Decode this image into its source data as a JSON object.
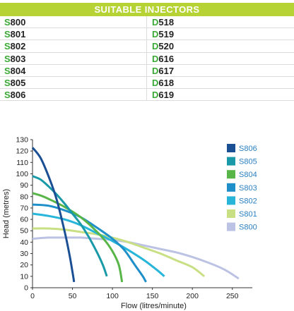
{
  "table": {
    "title": "SUITABLE INJECTORS",
    "rows": [
      [
        {
          "prefix": "S",
          "rest": "800"
        },
        {
          "prefix": "D",
          "rest": "518"
        }
      ],
      [
        {
          "prefix": "S",
          "rest": "801"
        },
        {
          "prefix": "D",
          "rest": "519"
        }
      ],
      [
        {
          "prefix": "S",
          "rest": "802"
        },
        {
          "prefix": "D",
          "rest": "520"
        }
      ],
      [
        {
          "prefix": "S",
          "rest": "803"
        },
        {
          "prefix": "D",
          "rest": "616"
        }
      ],
      [
        {
          "prefix": "S",
          "rest": "804"
        },
        {
          "prefix": "D",
          "rest": "617"
        }
      ],
      [
        {
          "prefix": "S",
          "rest": "805"
        },
        {
          "prefix": "D",
          "rest": "618"
        }
      ],
      [
        {
          "prefix": "S",
          "rest": "806"
        },
        {
          "prefix": "D",
          "rest": "619"
        }
      ]
    ],
    "colors": {
      "header_bg": "#b5d334",
      "prefix": "#3aa935"
    }
  },
  "chart_data": {
    "type": "line",
    "xlabel": "Flow (litres/minute)",
    "ylabel": "Head (metres)",
    "xlim": [
      0,
      275
    ],
    "ylim": [
      0,
      130
    ],
    "xticks": [
      0,
      50,
      100,
      150,
      200,
      250
    ],
    "yticks": [
      0,
      10,
      20,
      30,
      40,
      50,
      60,
      70,
      80,
      90,
      100,
      110,
      120,
      130
    ],
    "grid": false,
    "legend_position": "top-right",
    "series": [
      {
        "name": "S806",
        "color": "#1a4f94",
        "points": [
          [
            0,
            123
          ],
          [
            10,
            114
          ],
          [
            20,
            98
          ],
          [
            30,
            78
          ],
          [
            40,
            50
          ],
          [
            46,
            30
          ],
          [
            50,
            14
          ],
          [
            52,
            5
          ]
        ]
      },
      {
        "name": "S805",
        "color": "#1a9aa8",
        "points": [
          [
            0,
            98
          ],
          [
            10,
            95
          ],
          [
            20,
            89
          ],
          [
            30,
            82
          ],
          [
            40,
            74
          ],
          [
            50,
            65
          ],
          [
            60,
            56
          ],
          [
            70,
            45
          ],
          [
            80,
            32
          ],
          [
            88,
            20
          ],
          [
            93,
            10
          ]
        ]
      },
      {
        "name": "S804",
        "color": "#58b547",
        "points": [
          [
            0,
            83
          ],
          [
            10,
            81
          ],
          [
            20,
            78
          ],
          [
            40,
            71
          ],
          [
            60,
            62
          ],
          [
            75,
            53
          ],
          [
            90,
            42
          ],
          [
            100,
            32
          ],
          [
            108,
            20
          ],
          [
            112,
            5
          ]
        ]
      },
      {
        "name": "S803",
        "color": "#1f8fc9",
        "points": [
          [
            0,
            73
          ],
          [
            20,
            72
          ],
          [
            40,
            68
          ],
          [
            60,
            62
          ],
          [
            80,
            53
          ],
          [
            100,
            43
          ],
          [
            115,
            33
          ],
          [
            128,
            20
          ],
          [
            138,
            10
          ],
          [
            142,
            5
          ]
        ]
      },
      {
        "name": "S802",
        "color": "#27b6da",
        "points": [
          [
            0,
            65
          ],
          [
            20,
            63
          ],
          [
            40,
            60
          ],
          [
            60,
            55
          ],
          [
            80,
            48
          ],
          [
            100,
            41
          ],
          [
            120,
            33
          ],
          [
            140,
            24
          ],
          [
            155,
            16
          ],
          [
            165,
            10
          ]
        ]
      },
      {
        "name": "S801",
        "color": "#c8df83",
        "points": [
          [
            0,
            52
          ],
          [
            20,
            52
          ],
          [
            40,
            51
          ],
          [
            60,
            49
          ],
          [
            80,
            47
          ],
          [
            100,
            44
          ],
          [
            120,
            40
          ],
          [
            140,
            35
          ],
          [
            160,
            30
          ],
          [
            180,
            24
          ],
          [
            200,
            18
          ],
          [
            215,
            10
          ]
        ]
      },
      {
        "name": "S800",
        "color": "#bcc2e3",
        "points": [
          [
            0,
            43
          ],
          [
            20,
            44
          ],
          [
            40,
            44
          ],
          [
            60,
            44
          ],
          [
            80,
            43
          ],
          [
            100,
            42
          ],
          [
            120,
            40
          ],
          [
            140,
            37
          ],
          [
            160,
            34
          ],
          [
            180,
            31
          ],
          [
            200,
            27
          ],
          [
            220,
            22
          ],
          [
            240,
            16
          ],
          [
            258,
            8
          ]
        ]
      }
    ]
  }
}
